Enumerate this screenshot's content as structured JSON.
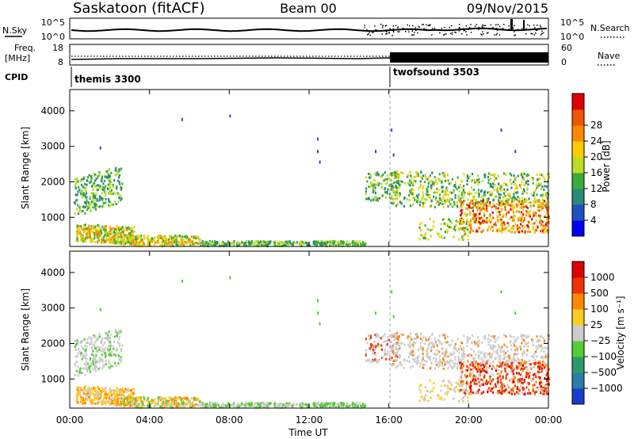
{
  "header": {
    "station": "Saskatoon (fitACF)",
    "beam": "Beam 00",
    "date": "09/Nov/2015"
  },
  "top_panels": {
    "nsky_label": "N.Sky",
    "nsky_ticks": [
      "10^5",
      "10^0"
    ],
    "nsearch_label": "N.Search",
    "nsearch_ticks": [
      "10^5",
      "10^0"
    ],
    "freq_label": "Freq.",
    "freq_unit": "[MHz]",
    "freq_ticks": [
      "18",
      "8"
    ],
    "nave_label": "Nave",
    "nave_ticks": [
      "60",
      "0"
    ],
    "cpid_label": "CPID",
    "cpid_modes": [
      {
        "name": "themis 3300",
        "start_hour": 0
      },
      {
        "name": "twofsound 3503",
        "start_hour": 16
      }
    ]
  },
  "chart_data": [
    {
      "type": "heatmap",
      "name": "power",
      "ylabel": "Slant Range [km]",
      "ylim": [
        180,
        4600
      ],
      "yticks": [
        "1000",
        "2000",
        "3000",
        "4000"
      ],
      "colorbar_label": "Power [dB]",
      "colorbar_ticks": [
        "4",
        "8",
        "12",
        "16",
        "20",
        "24",
        "28"
      ],
      "colors": [
        "#0000ee",
        "#2050c0",
        "#2a8a78",
        "#3aaa3a",
        "#bbdd22",
        "#ffcc00",
        "#ff8800",
        "#ee5500",
        "#dd0000"
      ]
    },
    {
      "type": "heatmap",
      "name": "velocity",
      "ylabel": "Slant Range [km]",
      "ylim": [
        180,
        4600
      ],
      "yticks": [
        "1000",
        "2000",
        "3000",
        "4000"
      ],
      "colorbar_label": "Velocity [m s⁻¹]",
      "colorbar_ticks": [
        "1000",
        "500",
        "100",
        "25",
        "−25",
        "−100",
        "−500",
        "−1000"
      ],
      "colors": [
        "#1a3ccc",
        "#2c7ca8",
        "#2e9a6c",
        "#55cc33",
        "#cccccc",
        "#ffcc22",
        "#ff8800",
        "#ee3300",
        "#dd0000"
      ]
    }
  ],
  "x_axis": {
    "label": "Time UT",
    "ticks": [
      "00:00",
      "04:00",
      "08:00",
      "12:00",
      "16:00",
      "20:00",
      "00:00"
    ],
    "xlim": [
      0,
      24
    ]
  }
}
